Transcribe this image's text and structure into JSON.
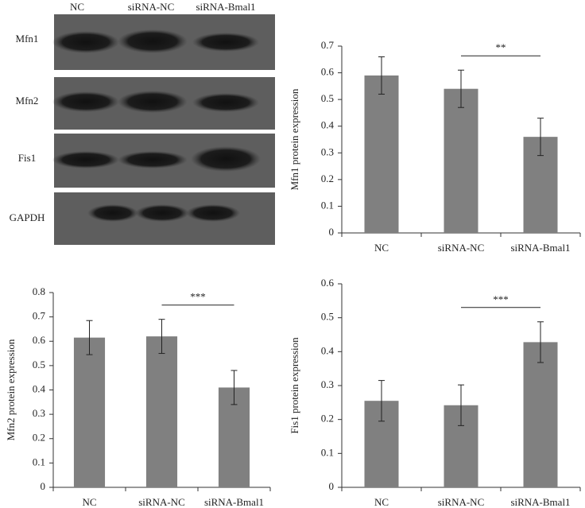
{
  "blot": {
    "lanes": [
      "NC",
      "siRNA-NC",
      "siRNA-Bmal1"
    ],
    "rows": [
      "Mfn1",
      "Mfn2",
      "Fis1",
      "GAPDH"
    ]
  },
  "chart_data": [
    {
      "type": "bar",
      "ylabel": "Mfn1 protein expression",
      "categories": [
        "NC",
        "siRNA-NC",
        "siRNA-Bmal1"
      ],
      "values": [
        0.59,
        0.54,
        0.36
      ],
      "errors": [
        0.07,
        0.07,
        0.07
      ],
      "color": "#808080",
      "ylim": [
        0,
        0.7
      ],
      "yticks": [
        0,
        0.1,
        0.2,
        0.3,
        0.4,
        0.5,
        0.6,
        0.7
      ],
      "annotations": [
        {
          "label": "**",
          "between": [
            "siRNA-NC",
            "siRNA-Bmal1"
          ]
        }
      ]
    },
    {
      "type": "bar",
      "ylabel": "Mfn2 protein expression",
      "categories": [
        "NC",
        "siRNA-NC",
        "siRNA-Bmal1"
      ],
      "values": [
        0.615,
        0.62,
        0.41
      ],
      "errors": [
        0.07,
        0.07,
        0.07
      ],
      "color": "#808080",
      "ylim": [
        0,
        0.8
      ],
      "yticks": [
        0,
        0.1,
        0.2,
        0.3,
        0.4,
        0.5,
        0.6,
        0.7,
        0.8
      ],
      "annotations": [
        {
          "label": "***",
          "between": [
            "siRNA-NC",
            "siRNA-Bmal1"
          ]
        }
      ]
    },
    {
      "type": "bar",
      "ylabel": "Fis1 protein expression",
      "categories": [
        "NC",
        "siRNA-NC",
        "siRNA-Bmal1"
      ],
      "values": [
        0.255,
        0.242,
        0.428
      ],
      "errors": [
        0.06,
        0.06,
        0.06
      ],
      "color": "#808080",
      "ylim": [
        0,
        0.6
      ],
      "yticks": [
        0,
        0.1,
        0.2,
        0.3,
        0.4,
        0.5,
        0.6
      ],
      "annotations": [
        {
          "label": "***",
          "between": [
            "siRNA-NC",
            "siRNA-Bmal1"
          ]
        }
      ]
    }
  ]
}
